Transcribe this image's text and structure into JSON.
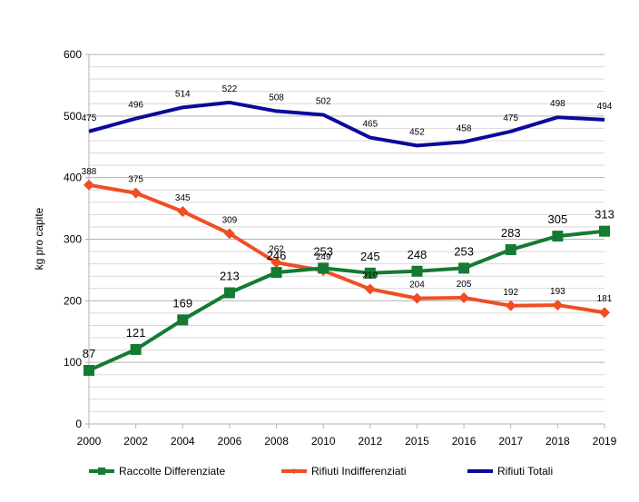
{
  "chart_data": {
    "type": "line",
    "title": "",
    "xlabel": "",
    "ylabel": "kg pro capite",
    "ylim": [
      0,
      600
    ],
    "y_major_ticks": [
      0,
      100,
      200,
      300,
      400,
      500,
      600
    ],
    "y_minor_step": 20,
    "grid": true,
    "legend_position": "bottom",
    "categories": [
      "2000",
      "2002",
      "2004",
      "2006",
      "2008",
      "2010",
      "2012",
      "2015",
      "2016",
      "2017",
      "2018",
      "2019"
    ],
    "series": [
      {
        "name": "Raccolte Differenziate",
        "color": "#157A32",
        "marker": "square",
        "values": [
          87,
          121,
          169,
          213,
          246,
          253,
          245,
          248,
          253,
          283,
          305,
          313
        ]
      },
      {
        "name": "Rifiuti Indifferenziati",
        "color": "#F04E23",
        "marker": "diamond",
        "values": [
          388,
          375,
          345,
          309,
          262,
          249,
          219,
          204,
          205,
          192,
          193,
          181
        ]
      },
      {
        "name": "Rifiuti Totali",
        "color": "#0A0A9C",
        "marker": "none",
        "values": [
          475,
          496,
          514,
          522,
          508,
          502,
          465,
          452,
          458,
          475,
          498,
          494
        ]
      }
    ]
  }
}
